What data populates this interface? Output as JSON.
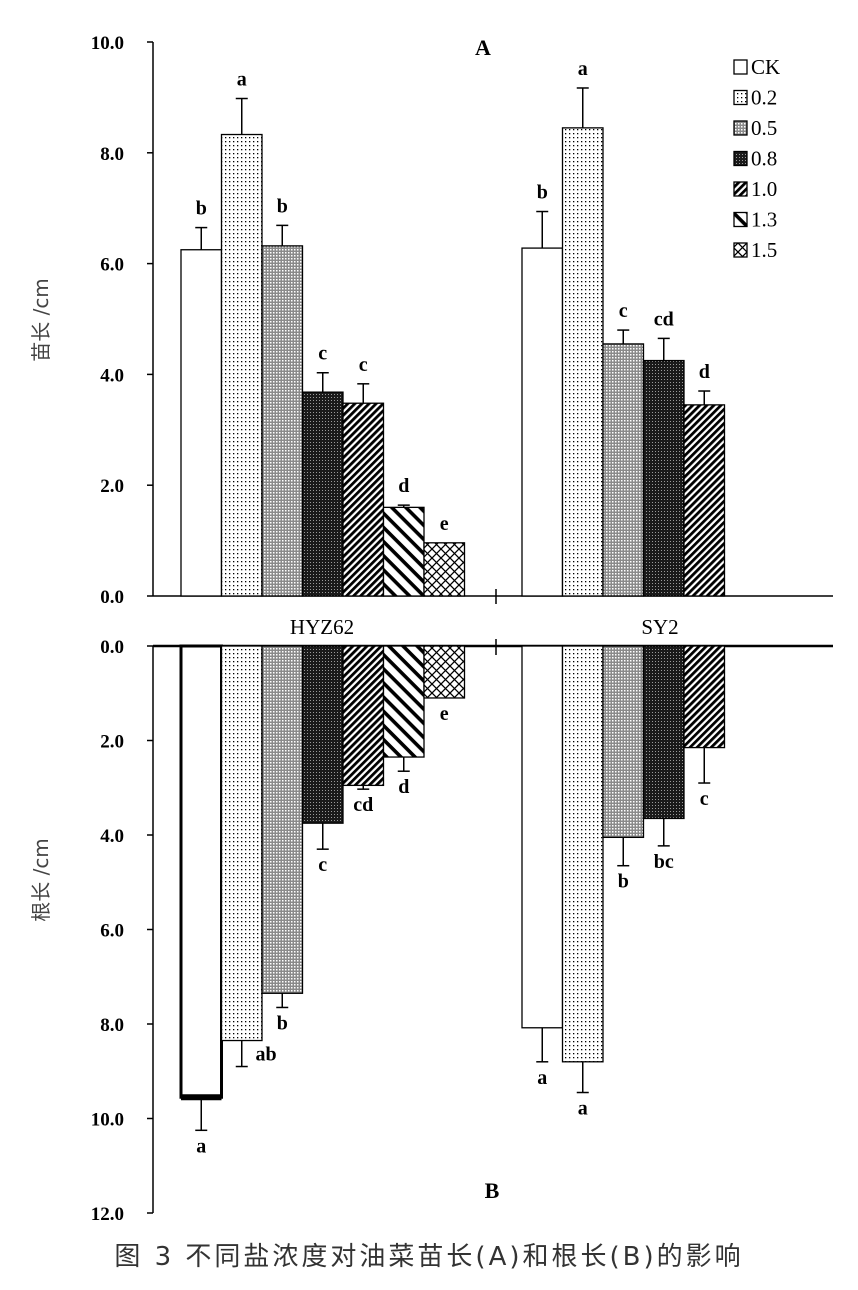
{
  "caption": "图 3   不同盐浓度对油菜苗长(A)和根长(B)的影响",
  "chart_data": [
    {
      "type": "bar",
      "panel_label": "A",
      "ylabel": "苗长 /cm",
      "ylim": [
        0,
        10
      ],
      "yticks": [
        "0.0",
        "2.0",
        "4.0",
        "6.0",
        "8.0",
        "10.0"
      ],
      "legend": {
        "title": "",
        "placement": "top-right",
        "entries": [
          "CK",
          "0.2",
          "0.5",
          "0.8",
          "1.0",
          "1.3",
          "1.5"
        ]
      },
      "groups": [
        {
          "name": "HYZ62",
          "values": [
            6.25,
            8.33,
            6.32,
            3.68,
            3.48,
            1.6,
            0.96
          ],
          "errors": [
            0.4,
            0.65,
            0.37,
            0.35,
            0.35,
            0.04,
            0.0
          ],
          "letters": [
            "b",
            "a",
            "b",
            "c",
            "c",
            "d",
            "e"
          ]
        },
        {
          "name": "SY2",
          "values": [
            6.28,
            8.45,
            4.55,
            4.25,
            3.45
          ],
          "errors": [
            0.66,
            0.72,
            0.25,
            0.4,
            0.25
          ],
          "letters": [
            "b",
            "a",
            "c",
            "cd",
            "d"
          ]
        }
      ]
    },
    {
      "type": "bar",
      "panel_label": "B",
      "ylabel": "根长 /cm",
      "ylim": [
        0,
        12
      ],
      "yticks": [
        "0.0",
        "2.0",
        "4.0",
        "6.0",
        "8.0",
        "10.0",
        "12.0"
      ],
      "orientation": "downward",
      "groups": [
        {
          "name": "HYZ62",
          "values": [
            9.55,
            8.35,
            7.35,
            3.75,
            2.95,
            2.35,
            1.1
          ],
          "errors": [
            0.7,
            0.55,
            0.3,
            0.55,
            0.08,
            0.3,
            0.0
          ],
          "letters": [
            "a",
            "ab",
            "b",
            "c",
            "cd",
            "d",
            "e"
          ]
        },
        {
          "name": "SY2",
          "values": [
            8.08,
            8.8,
            4.05,
            3.65,
            2.15
          ],
          "errors": [
            0.72,
            0.65,
            0.6,
            0.58,
            0.75
          ],
          "letters": [
            "a",
            "a",
            "b",
            "bc",
            "c"
          ]
        }
      ]
    }
  ]
}
